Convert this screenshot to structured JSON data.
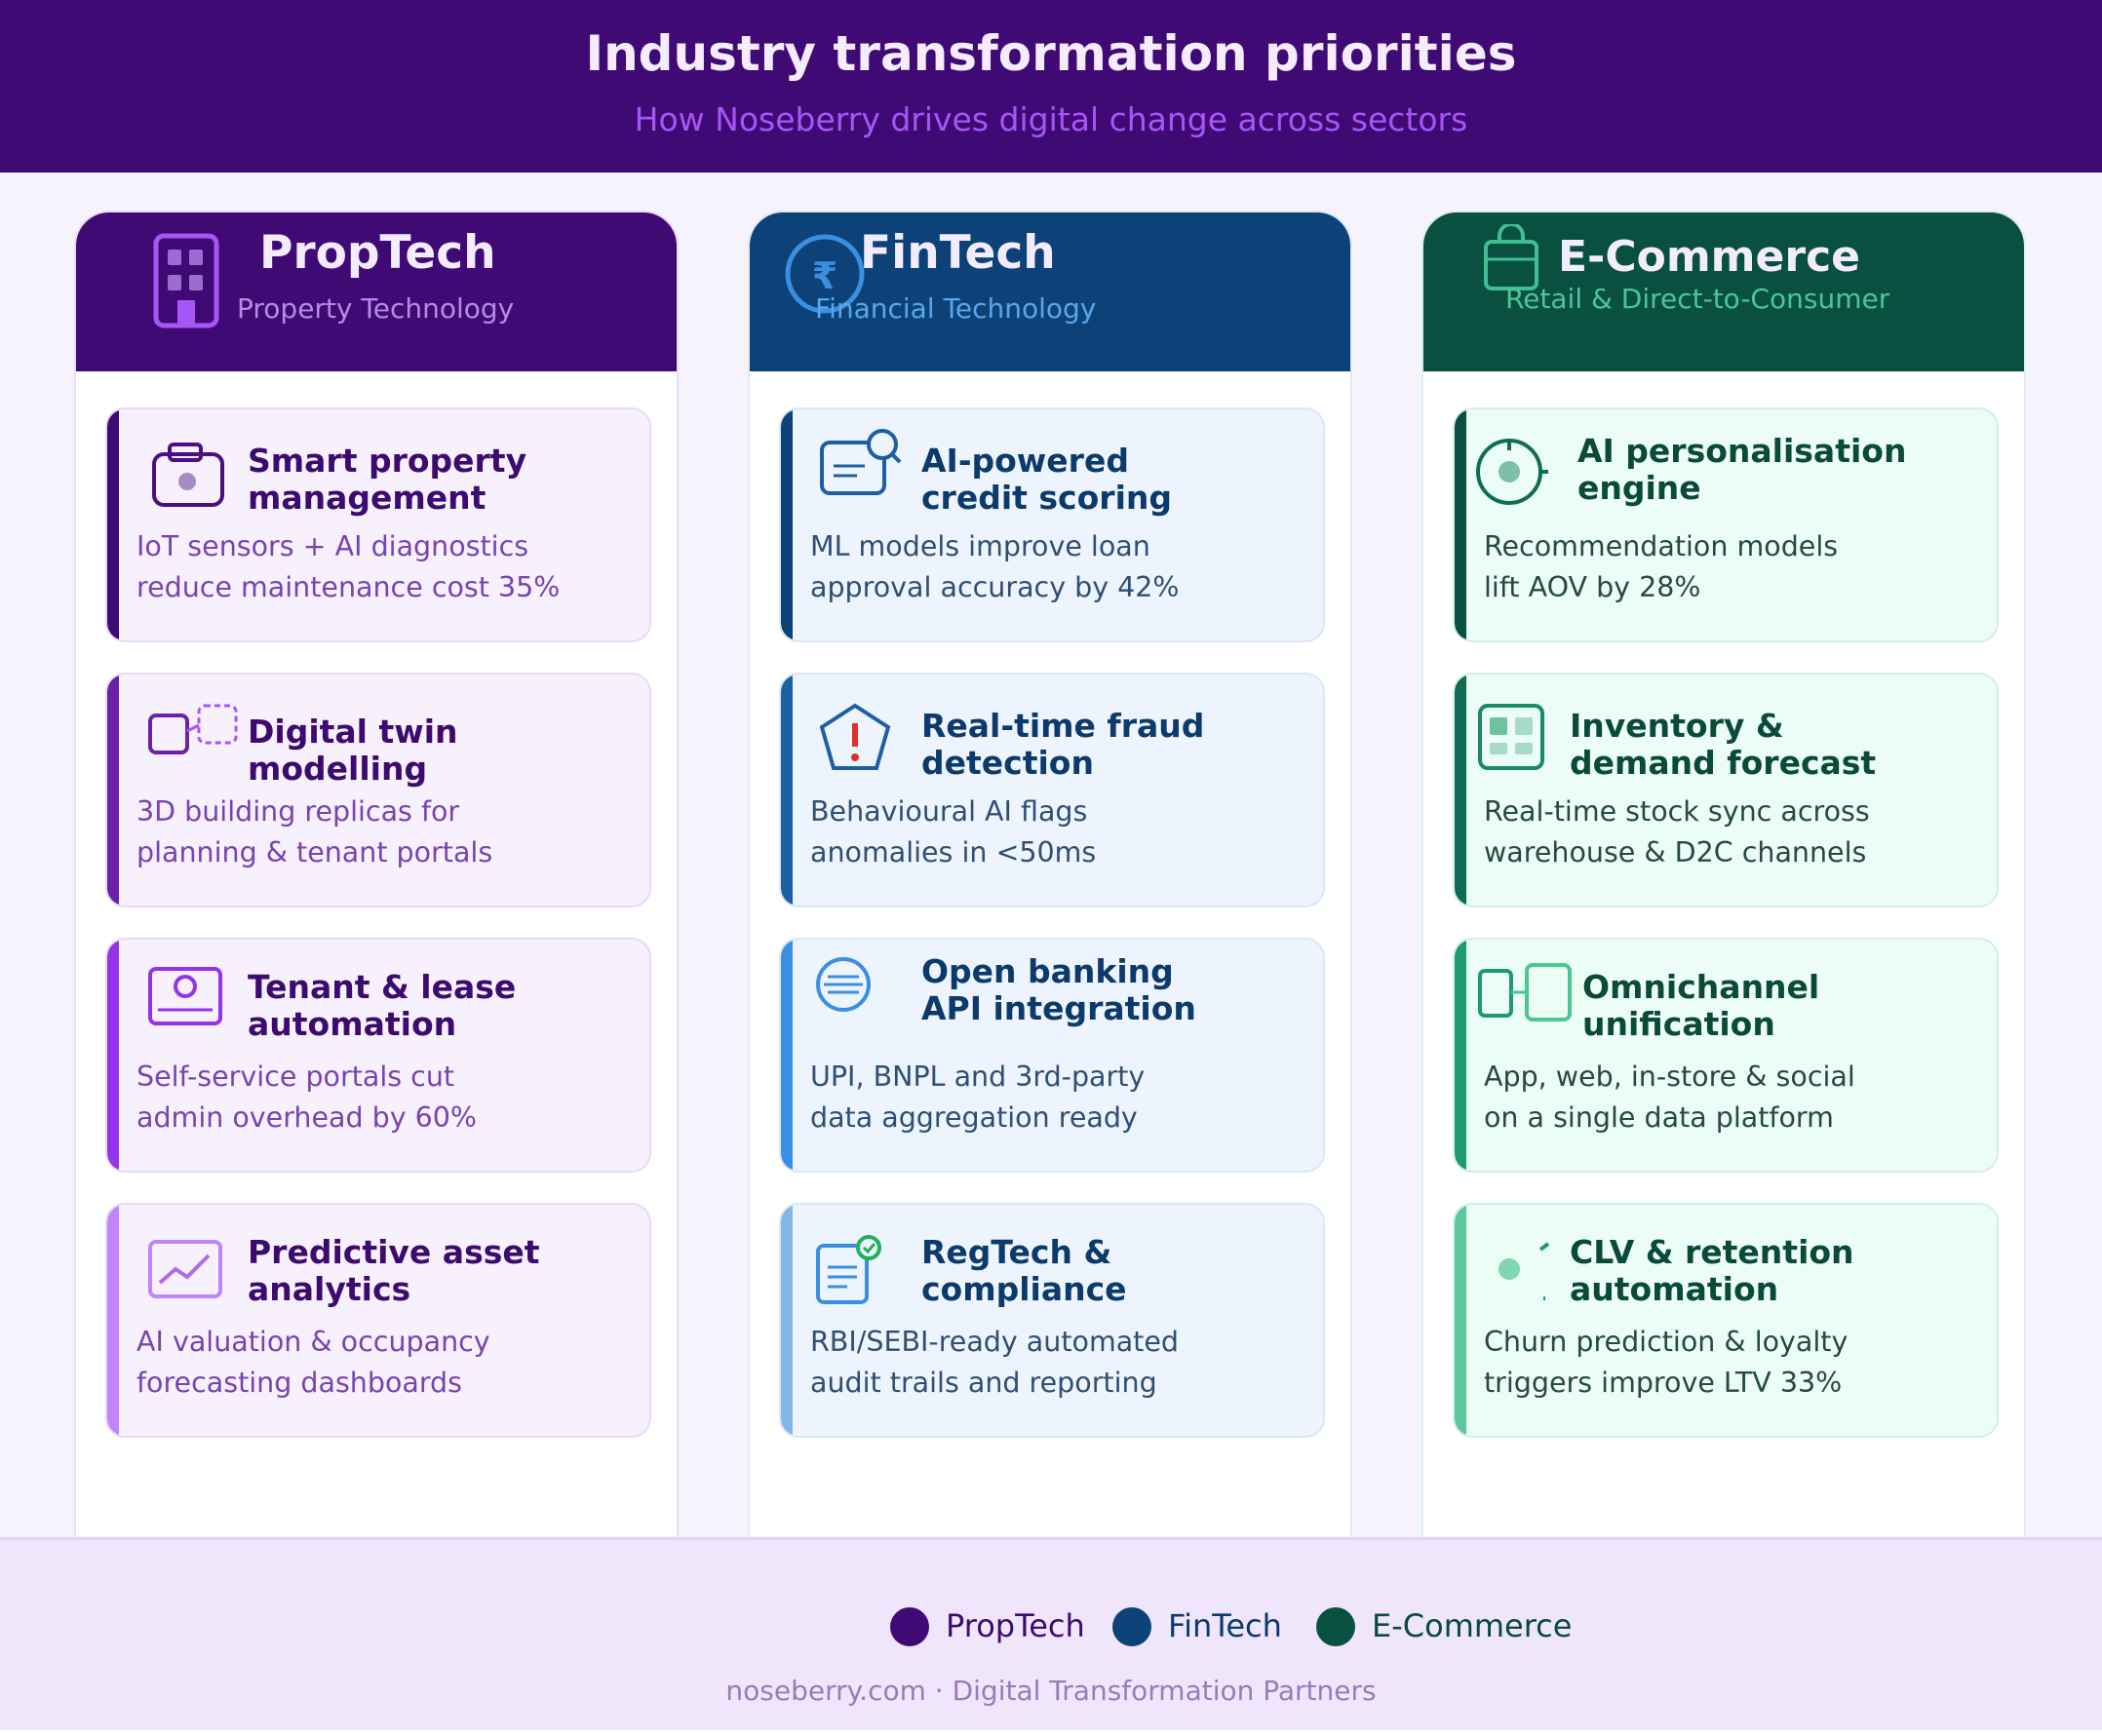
{
  "header": {
    "title": "Industry transformation priorities",
    "subtitle": "How Noseberry drives digital change across sectors"
  },
  "columns": [
    {
      "title": "PropTech",
      "subtitle": "Property Technology",
      "icon": "building-icon",
      "color": "#400a75",
      "cards": [
        {
          "icon": "toolbox-icon",
          "title": [
            "Smart property",
            "management"
          ],
          "desc": [
            "IoT sensors + AI diagnostics",
            "reduce maintenance cost 35%"
          ]
        },
        {
          "icon": "digital-twin-icon",
          "title": [
            "Digital twin",
            "modelling"
          ],
          "desc": [
            "3D building replicas for",
            "planning & tenant portals"
          ]
        },
        {
          "icon": "tenant-card-icon",
          "title": [
            "Tenant & lease",
            "automation"
          ],
          "desc": [
            "Self-service portals cut",
            "admin overhead by 60%"
          ]
        },
        {
          "icon": "trend-chart-icon",
          "title": [
            "Predictive asset",
            "analytics"
          ],
          "desc": [
            "AI valuation & occupancy",
            "forecasting dashboards"
          ]
        }
      ]
    },
    {
      "title": "FinTech",
      "subtitle": "Financial Technology",
      "icon": "rupee-coin-icon",
      "color": "#0c4278",
      "cards": [
        {
          "icon": "card-search-icon",
          "title": [
            "AI-powered",
            "credit scoring"
          ],
          "desc": [
            "ML models improve loan",
            "approval accuracy by 42%"
          ]
        },
        {
          "icon": "alert-shield-icon",
          "title": [
            "Real-time fraud",
            "detection"
          ],
          "desc": [
            "Behavioural AI flags",
            "anomalies in <50ms"
          ]
        },
        {
          "icon": "bank-api-icon",
          "title": [
            "Open banking",
            "API integration"
          ],
          "desc": [
            "UPI, BNPL and 3rd-party",
            "data aggregation ready"
          ]
        },
        {
          "icon": "compliance-doc-icon",
          "title": [
            "RegTech &",
            "compliance"
          ],
          "desc": [
            "RBI/SEBI-ready automated",
            "audit trails and reporting"
          ]
        }
      ]
    },
    {
      "title": "E-Commerce",
      "subtitle": "Retail & Direct-to-Consumer",
      "icon": "shopping-bag-icon",
      "color": "#0a5040",
      "cards": [
        {
          "icon": "target-icon",
          "title": [
            "AI personalisation",
            "engine"
          ],
          "desc": [
            "Recommendation models",
            "lift AOV by 28%"
          ]
        },
        {
          "icon": "inventory-grid-icon",
          "title": [
            "Inventory &",
            "demand forecast"
          ],
          "desc": [
            "Real-time stock sync across",
            "warehouse & D2C channels"
          ]
        },
        {
          "icon": "omnichannel-icon",
          "title": [
            "Omnichannel",
            "unification"
          ],
          "desc": [
            "App, web, in-store & social",
            "on a single data platform"
          ]
        },
        {
          "icon": "retention-loop-icon",
          "title": [
            "CLV & retention",
            "automation"
          ],
          "desc": [
            "Churn prediction & loyalty",
            "triggers improve LTV 33%"
          ]
        }
      ]
    }
  ],
  "legend": [
    {
      "label": "PropTech",
      "color": "#400a75"
    },
    {
      "label": "FinTech",
      "color": "#0c4278"
    },
    {
      "label": "E-Commerce",
      "color": "#0a5040"
    }
  ],
  "footer": {
    "note": "noseberry.com · Digital Transformation Partners"
  }
}
